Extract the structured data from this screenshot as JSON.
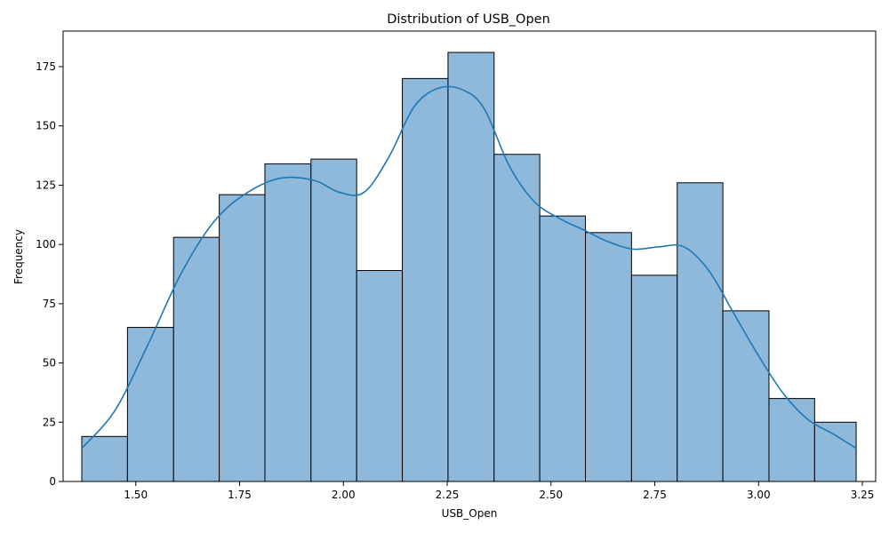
{
  "chart_data": {
    "type": "bar",
    "title": "Distribution of USB_Open",
    "xlabel": "USB_Open",
    "ylabel": "Frequency",
    "xlim": [
      1.325,
      3.282
    ],
    "ylim": [
      0,
      190
    ],
    "x_ticks": [
      1.5,
      1.75,
      2.0,
      2.25,
      2.5,
      2.75,
      3.0,
      3.25
    ],
    "x_tick_labels": [
      "1.50",
      "1.75",
      "2.00",
      "2.25",
      "2.50",
      "2.75",
      "3.00",
      "3.25"
    ],
    "y_ticks": [
      0,
      25,
      50,
      75,
      100,
      125,
      150,
      175
    ],
    "y_tick_labels": [
      "0",
      "25",
      "50",
      "75",
      "100",
      "125",
      "150",
      "175"
    ],
    "bin_edges": [
      1.37,
      1.48,
      1.591,
      1.701,
      1.811,
      1.922,
      2.032,
      2.142,
      2.252,
      2.363,
      2.473,
      2.583,
      2.694,
      2.804,
      2.914,
      3.025,
      3.135,
      3.235
    ],
    "values": [
      19,
      65,
      103,
      121,
      134,
      136,
      89,
      170,
      181,
      138,
      112,
      105,
      87,
      126,
      72,
      35,
      25
    ],
    "kde": {
      "x": [
        1.37,
        1.45,
        1.53,
        1.61,
        1.69,
        1.77,
        1.85,
        1.93,
        1.99,
        2.05,
        2.11,
        2.17,
        2.23,
        2.29,
        2.34,
        2.4,
        2.46,
        2.52,
        2.58,
        2.64,
        2.7,
        2.76,
        2.82,
        2.88,
        2.94,
        3.0,
        3.06,
        3.12,
        3.18,
        3.235
      ],
      "y": [
        14,
        30,
        58,
        88,
        110,
        122,
        128,
        127,
        122,
        122,
        137,
        158,
        166,
        165,
        157,
        133,
        118,
        111,
        106,
        101,
        98,
        99,
        99,
        89,
        71,
        53,
        37,
        26,
        20,
        14
      ]
    },
    "colors": {
      "bar_fill": "#8fb9da",
      "bar_edge": "#000000",
      "kde_line": "#1f77b4"
    },
    "grid": false,
    "legend": "none"
  }
}
